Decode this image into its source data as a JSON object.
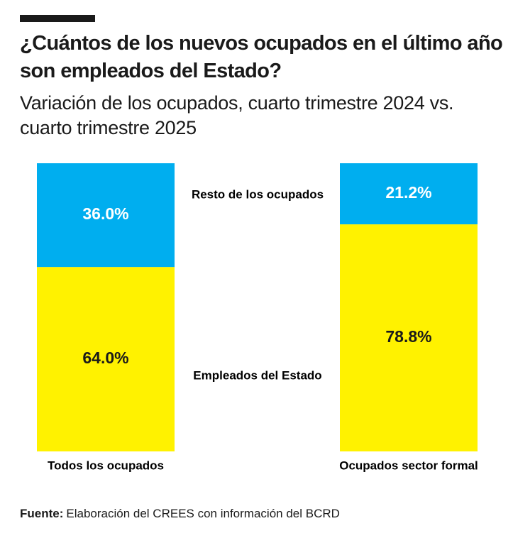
{
  "chart_data": {
    "type": "stacked_bar",
    "title": "¿Cuántos de los nuevos ocupados en el último año son empleados del Estado?",
    "subtitle": "Variación de los ocupados, cuarto trimestre 2024 vs. cuarto trimestre 2025",
    "categories": [
      "Todos los ocupados",
      "Ocupados sector formal"
    ],
    "series": [
      {
        "name": "Empleados del Estado",
        "color": "#fff200",
        "values": [
          64.0,
          78.8
        ],
        "value_labels": [
          "64.0%",
          "78.8%"
        ]
      },
      {
        "name": "Resto de los ocupados",
        "color": "#00aeef",
        "values": [
          36.0,
          21.2
        ],
        "value_labels": [
          "36.0%",
          "21.2%"
        ]
      }
    ],
    "ylim": [
      0,
      100
    ],
    "source_label": "Fuente:",
    "source": "Elaboración del CREES con información del BCRD"
  }
}
